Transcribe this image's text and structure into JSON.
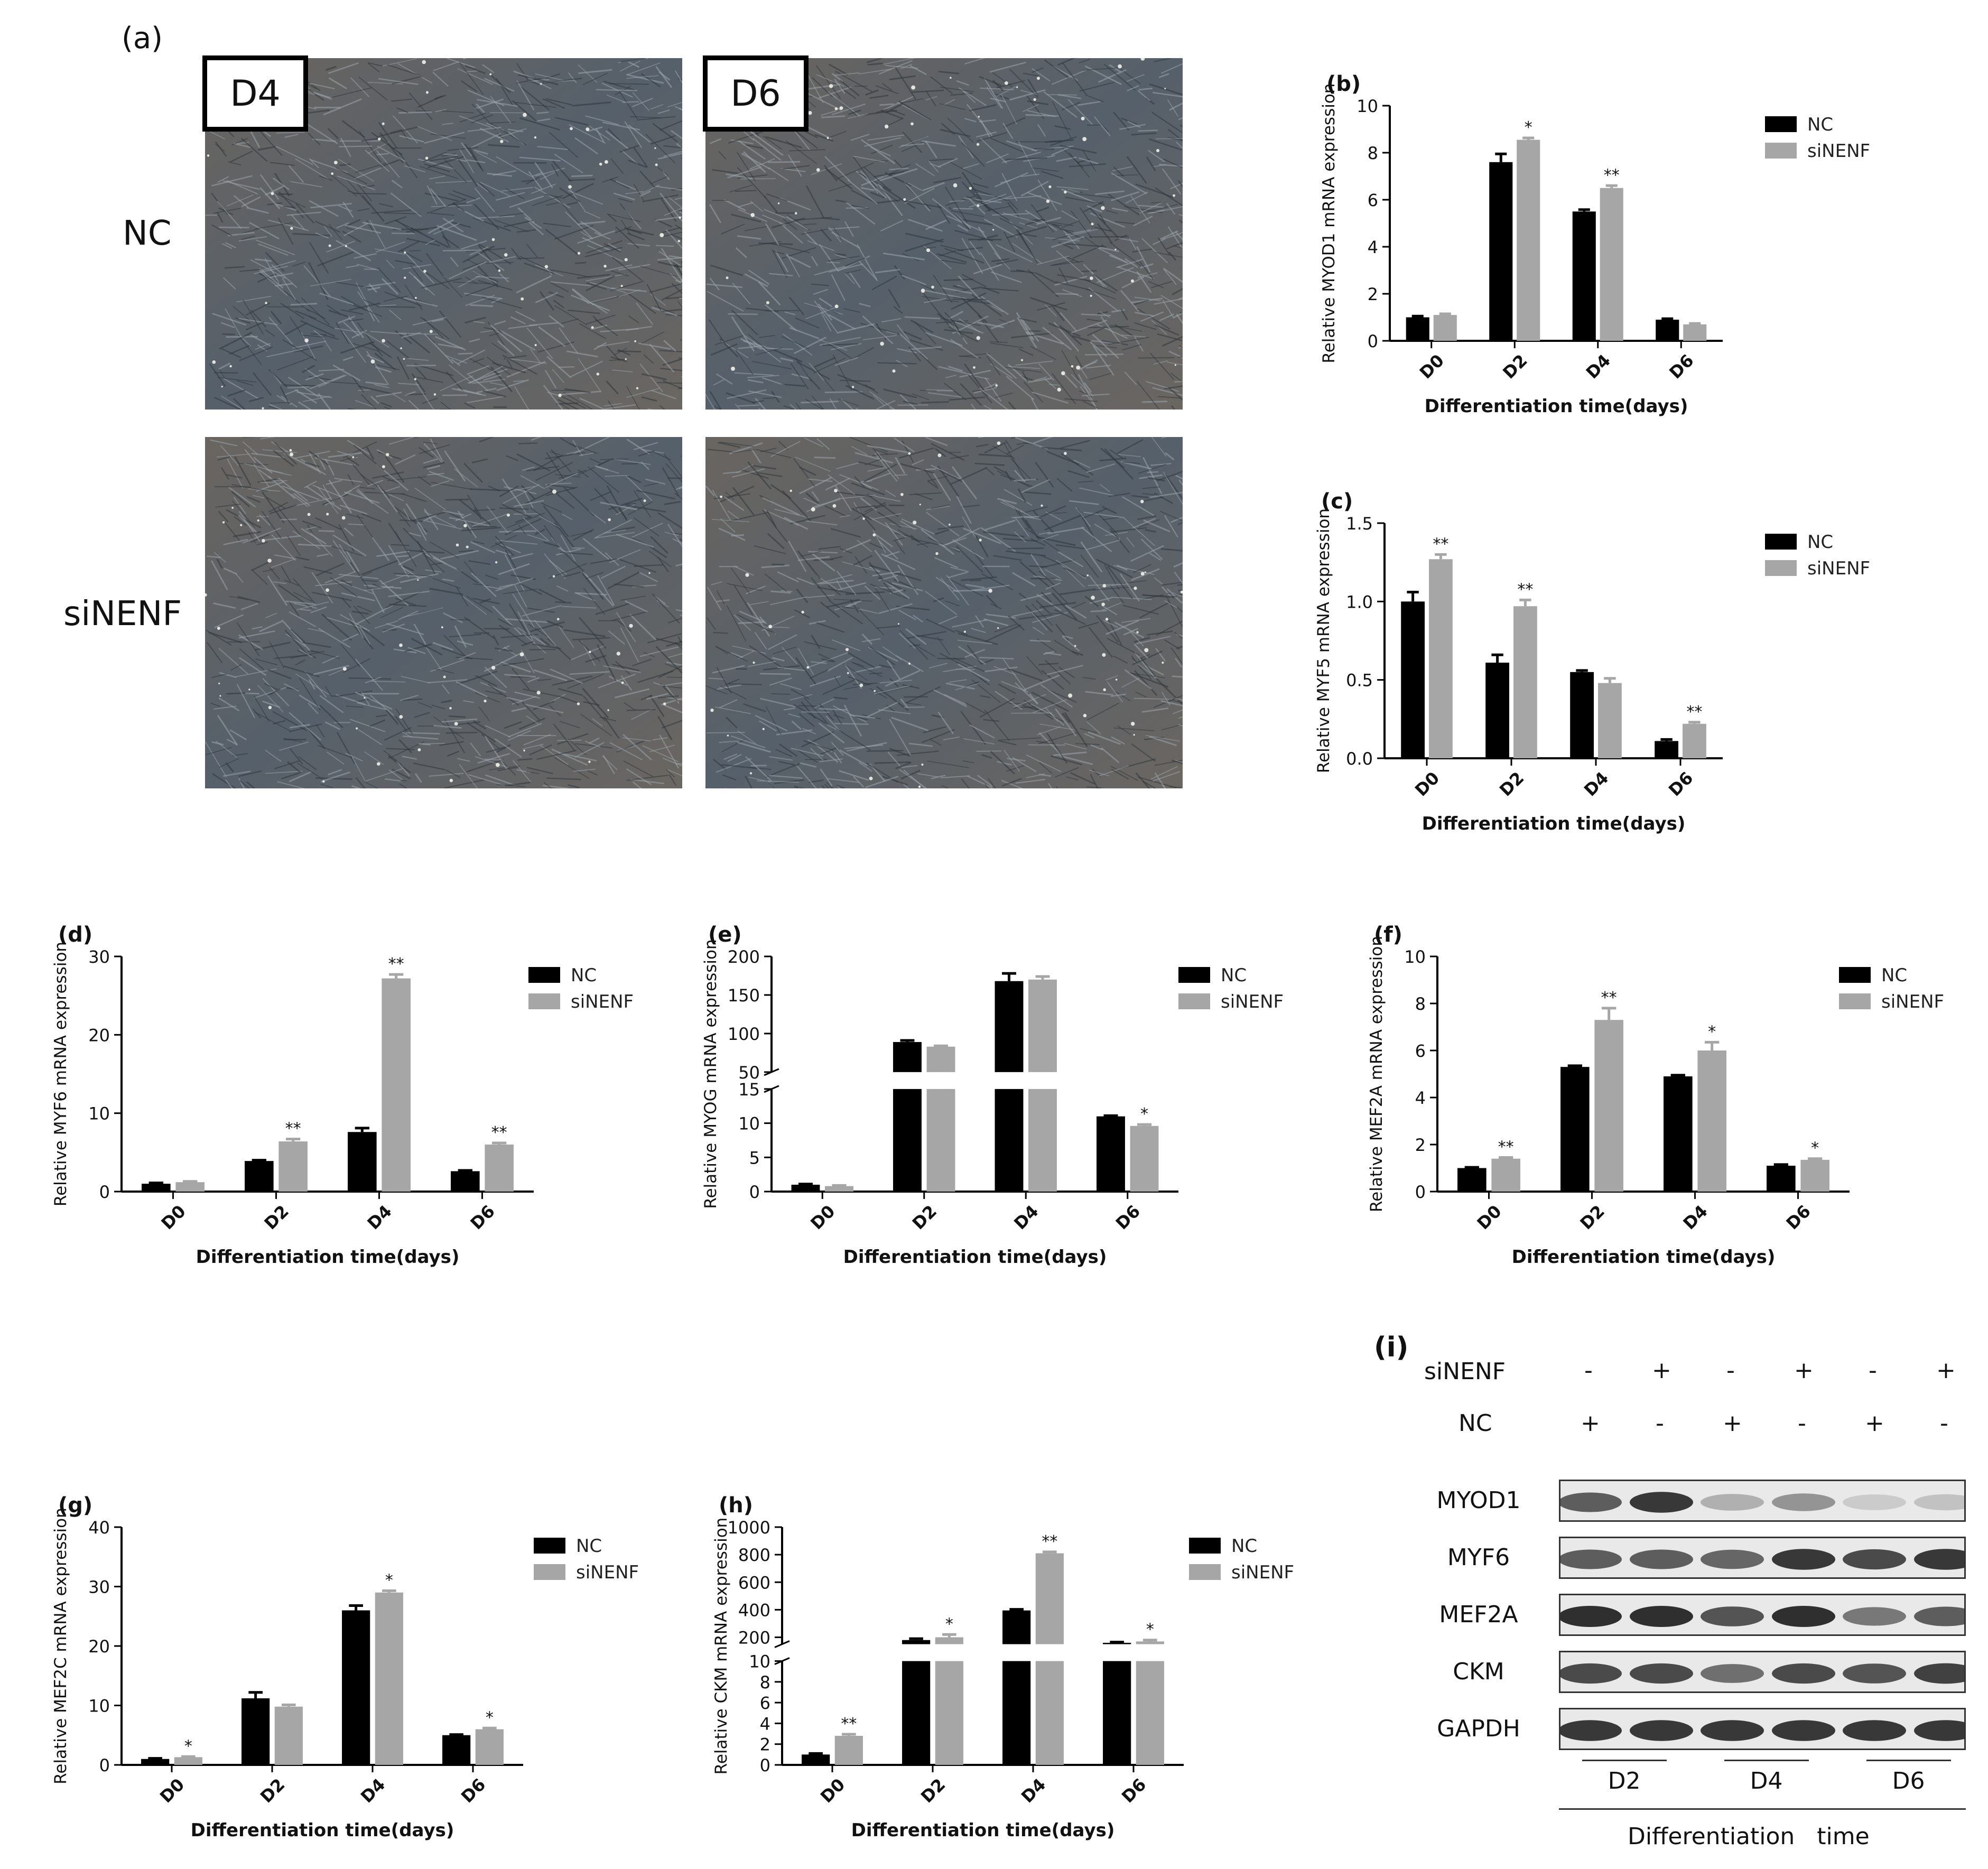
{
  "panel_a": {
    "label": "(a)",
    "day_labels": [
      "D4",
      "D6"
    ],
    "row_labels": [
      "NC",
      "siNENF"
    ]
  },
  "colors": {
    "nc": "#000000",
    "sinenf": "#a6a6a6"
  },
  "chart_data": [
    {
      "id": "b",
      "label": "(b)",
      "type": "bar",
      "categories": [
        "D0",
        "D2",
        "D4",
        "D6"
      ],
      "series": [
        {
          "name": "NC",
          "values": [
            1.0,
            7.6,
            5.5,
            0.9
          ],
          "errors": [
            0.05,
            0.35,
            0.08,
            0.04
          ]
        },
        {
          "name": "siNENF",
          "values": [
            1.1,
            8.55,
            6.5,
            0.7
          ],
          "errors": [
            0.05,
            0.08,
            0.1,
            0.04
          ]
        }
      ],
      "significance": [
        [
          "",
          ""
        ],
        [
          "",
          "*"
        ],
        [
          "",
          "**"
        ],
        [
          "",
          ""
        ]
      ],
      "ylim": [
        0,
        10
      ],
      "yticks": [
        "0",
        "2",
        "4",
        "6",
        "8",
        "10"
      ],
      "ylabel": "Relative MYOD1 mRNA expression",
      "xlabel": "Differentiation time(days)",
      "legend": "top-right"
    },
    {
      "id": "c",
      "label": "(c)",
      "type": "bar",
      "categories": [
        "D0",
        "D2",
        "D4",
        "D6"
      ],
      "series": [
        {
          "name": "NC",
          "values": [
            1.0,
            0.61,
            0.55,
            0.11
          ],
          "errors": [
            0.06,
            0.05,
            0.01,
            0.01
          ]
        },
        {
          "name": "siNENF",
          "values": [
            1.27,
            0.97,
            0.48,
            0.22
          ],
          "errors": [
            0.03,
            0.04,
            0.03,
            0.01
          ]
        }
      ],
      "significance": [
        [
          "",
          "**"
        ],
        [
          "",
          "**"
        ],
        [
          "",
          ""
        ],
        [
          "",
          "**"
        ]
      ],
      "ylim": [
        0,
        1.5
      ],
      "yticks": [
        "0.0",
        "0.5",
        "1.0",
        "1.5"
      ],
      "ylabel": "Relative MYF5 mRNA expression",
      "xlabel": "Differentiation time(days)",
      "legend": "top-right"
    },
    {
      "id": "d",
      "label": "(d)",
      "type": "bar",
      "categories": [
        "D0",
        "D2",
        "D4",
        "D6"
      ],
      "series": [
        {
          "name": "NC",
          "values": [
            1.0,
            3.9,
            7.6,
            2.6
          ],
          "errors": [
            0.1,
            0.1,
            0.5,
            0.1
          ]
        },
        {
          "name": "siNENF",
          "values": [
            1.2,
            6.4,
            27.2,
            6.0
          ],
          "errors": [
            0.1,
            0.3,
            0.5,
            0.2
          ]
        }
      ],
      "significance": [
        [
          "",
          ""
        ],
        [
          "",
          "**"
        ],
        [
          "",
          "**"
        ],
        [
          "",
          "**"
        ]
      ],
      "ylim": [
        0,
        30
      ],
      "yticks": [
        "0",
        "10",
        "20",
        "30"
      ],
      "ylabel": "Relative MYF6 mRNA expression",
      "xlabel": "Differentiation time(days)",
      "legend": "top-right"
    },
    {
      "id": "e",
      "label": "(e)",
      "type": "bar",
      "broken_axis": true,
      "categories": [
        "D0",
        "D2",
        "D4",
        "D6"
      ],
      "series": [
        {
          "name": "NC",
          "values": [
            1.0,
            89,
            168,
            11.0
          ],
          "errors": [
            0.1,
            2,
            10,
            0.1
          ]
        },
        {
          "name": "siNENF",
          "values": [
            0.8,
            83,
            170,
            9.6
          ],
          "errors": [
            0.1,
            1,
            4,
            0.2
          ]
        }
      ],
      "significance": [
        [
          "",
          ""
        ],
        [
          "",
          ""
        ],
        [
          "",
          ""
        ],
        [
          "",
          "*"
        ]
      ],
      "lower_ylim": [
        0,
        15
      ],
      "upper_ylim": [
        50,
        200
      ],
      "lower_yticks": [
        "0",
        "5",
        "10",
        "15"
      ],
      "upper_yticks": [
        "50",
        "100",
        "150",
        "200"
      ],
      "ylabel": "Relative MYOG mRNA expression",
      "xlabel": "Differentiation time(days)",
      "legend": "top-right"
    },
    {
      "id": "f",
      "label": "(f)",
      "type": "bar",
      "categories": [
        "D0",
        "D2",
        "D4",
        "D6"
      ],
      "series": [
        {
          "name": "NC",
          "values": [
            1.0,
            5.3,
            4.9,
            1.1
          ],
          "errors": [
            0.03,
            0.05,
            0.05,
            0.05
          ]
        },
        {
          "name": "siNENF",
          "values": [
            1.4,
            7.3,
            6.0,
            1.35
          ],
          "errors": [
            0.05,
            0.5,
            0.35,
            0.05
          ]
        }
      ],
      "significance": [
        [
          "",
          "**"
        ],
        [
          "",
          "**"
        ],
        [
          "",
          "*"
        ],
        [
          "",
          "*"
        ]
      ],
      "ylim": [
        0,
        10
      ],
      "yticks": [
        "0",
        "2",
        "4",
        "6",
        "8",
        "10"
      ],
      "ylabel": "Relative MEF2A mRNA expression",
      "xlabel": "Differentiation time(days)",
      "legend": "top-right"
    },
    {
      "id": "g",
      "label": "(g)",
      "type": "bar",
      "categories": [
        "D0",
        "D2",
        "D4",
        "D6"
      ],
      "series": [
        {
          "name": "NC",
          "values": [
            1.0,
            11.2,
            26.0,
            5.0
          ],
          "errors": [
            0.1,
            1.0,
            0.8,
            0.1
          ]
        },
        {
          "name": "siNENF",
          "values": [
            1.3,
            9.8,
            29.0,
            6.0
          ],
          "errors": [
            0.1,
            0.3,
            0.3,
            0.2
          ]
        }
      ],
      "significance": [
        [
          "",
          "*"
        ],
        [
          "",
          ""
        ],
        [
          "",
          "*"
        ],
        [
          "",
          "*"
        ]
      ],
      "ylim": [
        0,
        40
      ],
      "yticks": [
        "0",
        "10",
        "20",
        "30",
        "40"
      ],
      "ylabel": "Relative MEF2C mRNA expression",
      "xlabel": "Differentiation time(days)",
      "legend": "top-right"
    },
    {
      "id": "h",
      "label": "(h)",
      "type": "bar",
      "broken_axis": true,
      "categories": [
        "D0",
        "D2",
        "D4",
        "D6"
      ],
      "series": [
        {
          "name": "NC",
          "values": [
            1.0,
            180,
            395,
            160
          ],
          "errors": [
            0.1,
            10,
            8,
            5
          ]
        },
        {
          "name": "siNENF",
          "values": [
            2.8,
            200,
            810,
            170
          ],
          "errors": [
            0.15,
            20,
            10,
            10
          ]
        }
      ],
      "significance": [
        [
          "",
          "**"
        ],
        [
          "",
          "*"
        ],
        [
          "",
          "**"
        ],
        [
          "",
          "*"
        ]
      ],
      "lower_ylim": [
        0,
        10
      ],
      "upper_ylim": [
        150,
        1000
      ],
      "lower_yticks": [
        "0",
        "2",
        "4",
        "6",
        "8",
        "10"
      ],
      "upper_yticks": [
        "200",
        "400",
        "600",
        "800",
        "1000"
      ],
      "ylabel": "Relative CKM mRNA expression",
      "xlabel": "Differentiation time(days)",
      "legend": "top-right"
    }
  ],
  "western": {
    "label": "(i)",
    "row_names": [
      "siNENF",
      "NC"
    ],
    "sinenf_signs": [
      "-",
      "+",
      "-",
      "+",
      "-",
      "+"
    ],
    "nc_signs": [
      "+",
      "-",
      "+",
      "-",
      "+",
      "-"
    ],
    "bands": [
      {
        "name": "MYOD1",
        "intensity": [
          0.75,
          0.95,
          0.3,
          0.45,
          0.15,
          0.2
        ]
      },
      {
        "name": "MYF6",
        "intensity": [
          0.75,
          0.75,
          0.7,
          0.95,
          0.85,
          0.95
        ]
      },
      {
        "name": "MEF2A",
        "intensity": [
          1.0,
          1.0,
          0.8,
          1.0,
          0.6,
          0.75
        ]
      },
      {
        "name": "CKM",
        "intensity": [
          0.85,
          0.85,
          0.65,
          0.85,
          0.8,
          0.9
        ]
      },
      {
        "name": "GAPDH",
        "intensity": [
          0.95,
          0.95,
          0.95,
          0.95,
          0.95,
          0.95
        ]
      }
    ],
    "days": [
      "D2",
      "D4",
      "D6"
    ],
    "xlabel": "Differentiation   time"
  }
}
